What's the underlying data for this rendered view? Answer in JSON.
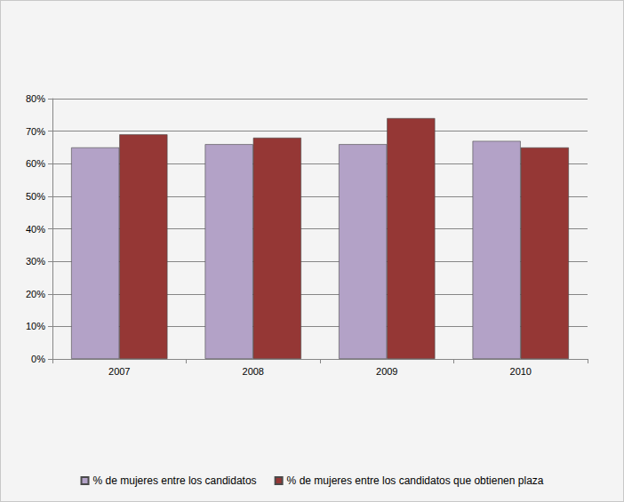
{
  "chart_data": {
    "type": "bar",
    "categories": [
      "2007",
      "2008",
      "2009",
      "2010"
    ],
    "series": [
      {
        "name": "% de mujeres entre los candidatos",
        "color": "#b3a2c7",
        "values": [
          65,
          66,
          66,
          67
        ]
      },
      {
        "name": "% de mujeres entre los candidatos que obtienen plaza",
        "color": "#953735",
        "values": [
          69,
          68,
          74,
          65
        ]
      }
    ],
    "ylim": [
      0,
      80
    ],
    "yticks": [
      {
        "value": 0,
        "label": "0%"
      },
      {
        "value": 10,
        "label": "10%"
      },
      {
        "value": 20,
        "label": "20%"
      },
      {
        "value": 30,
        "label": "30%"
      },
      {
        "value": 40,
        "label": "40%"
      },
      {
        "value": 50,
        "label": "50%"
      },
      {
        "value": 60,
        "label": "60%"
      },
      {
        "value": 70,
        "label": "70%"
      },
      {
        "value": 80,
        "label": "80%"
      }
    ],
    "grid": true,
    "legend": "bottom"
  }
}
